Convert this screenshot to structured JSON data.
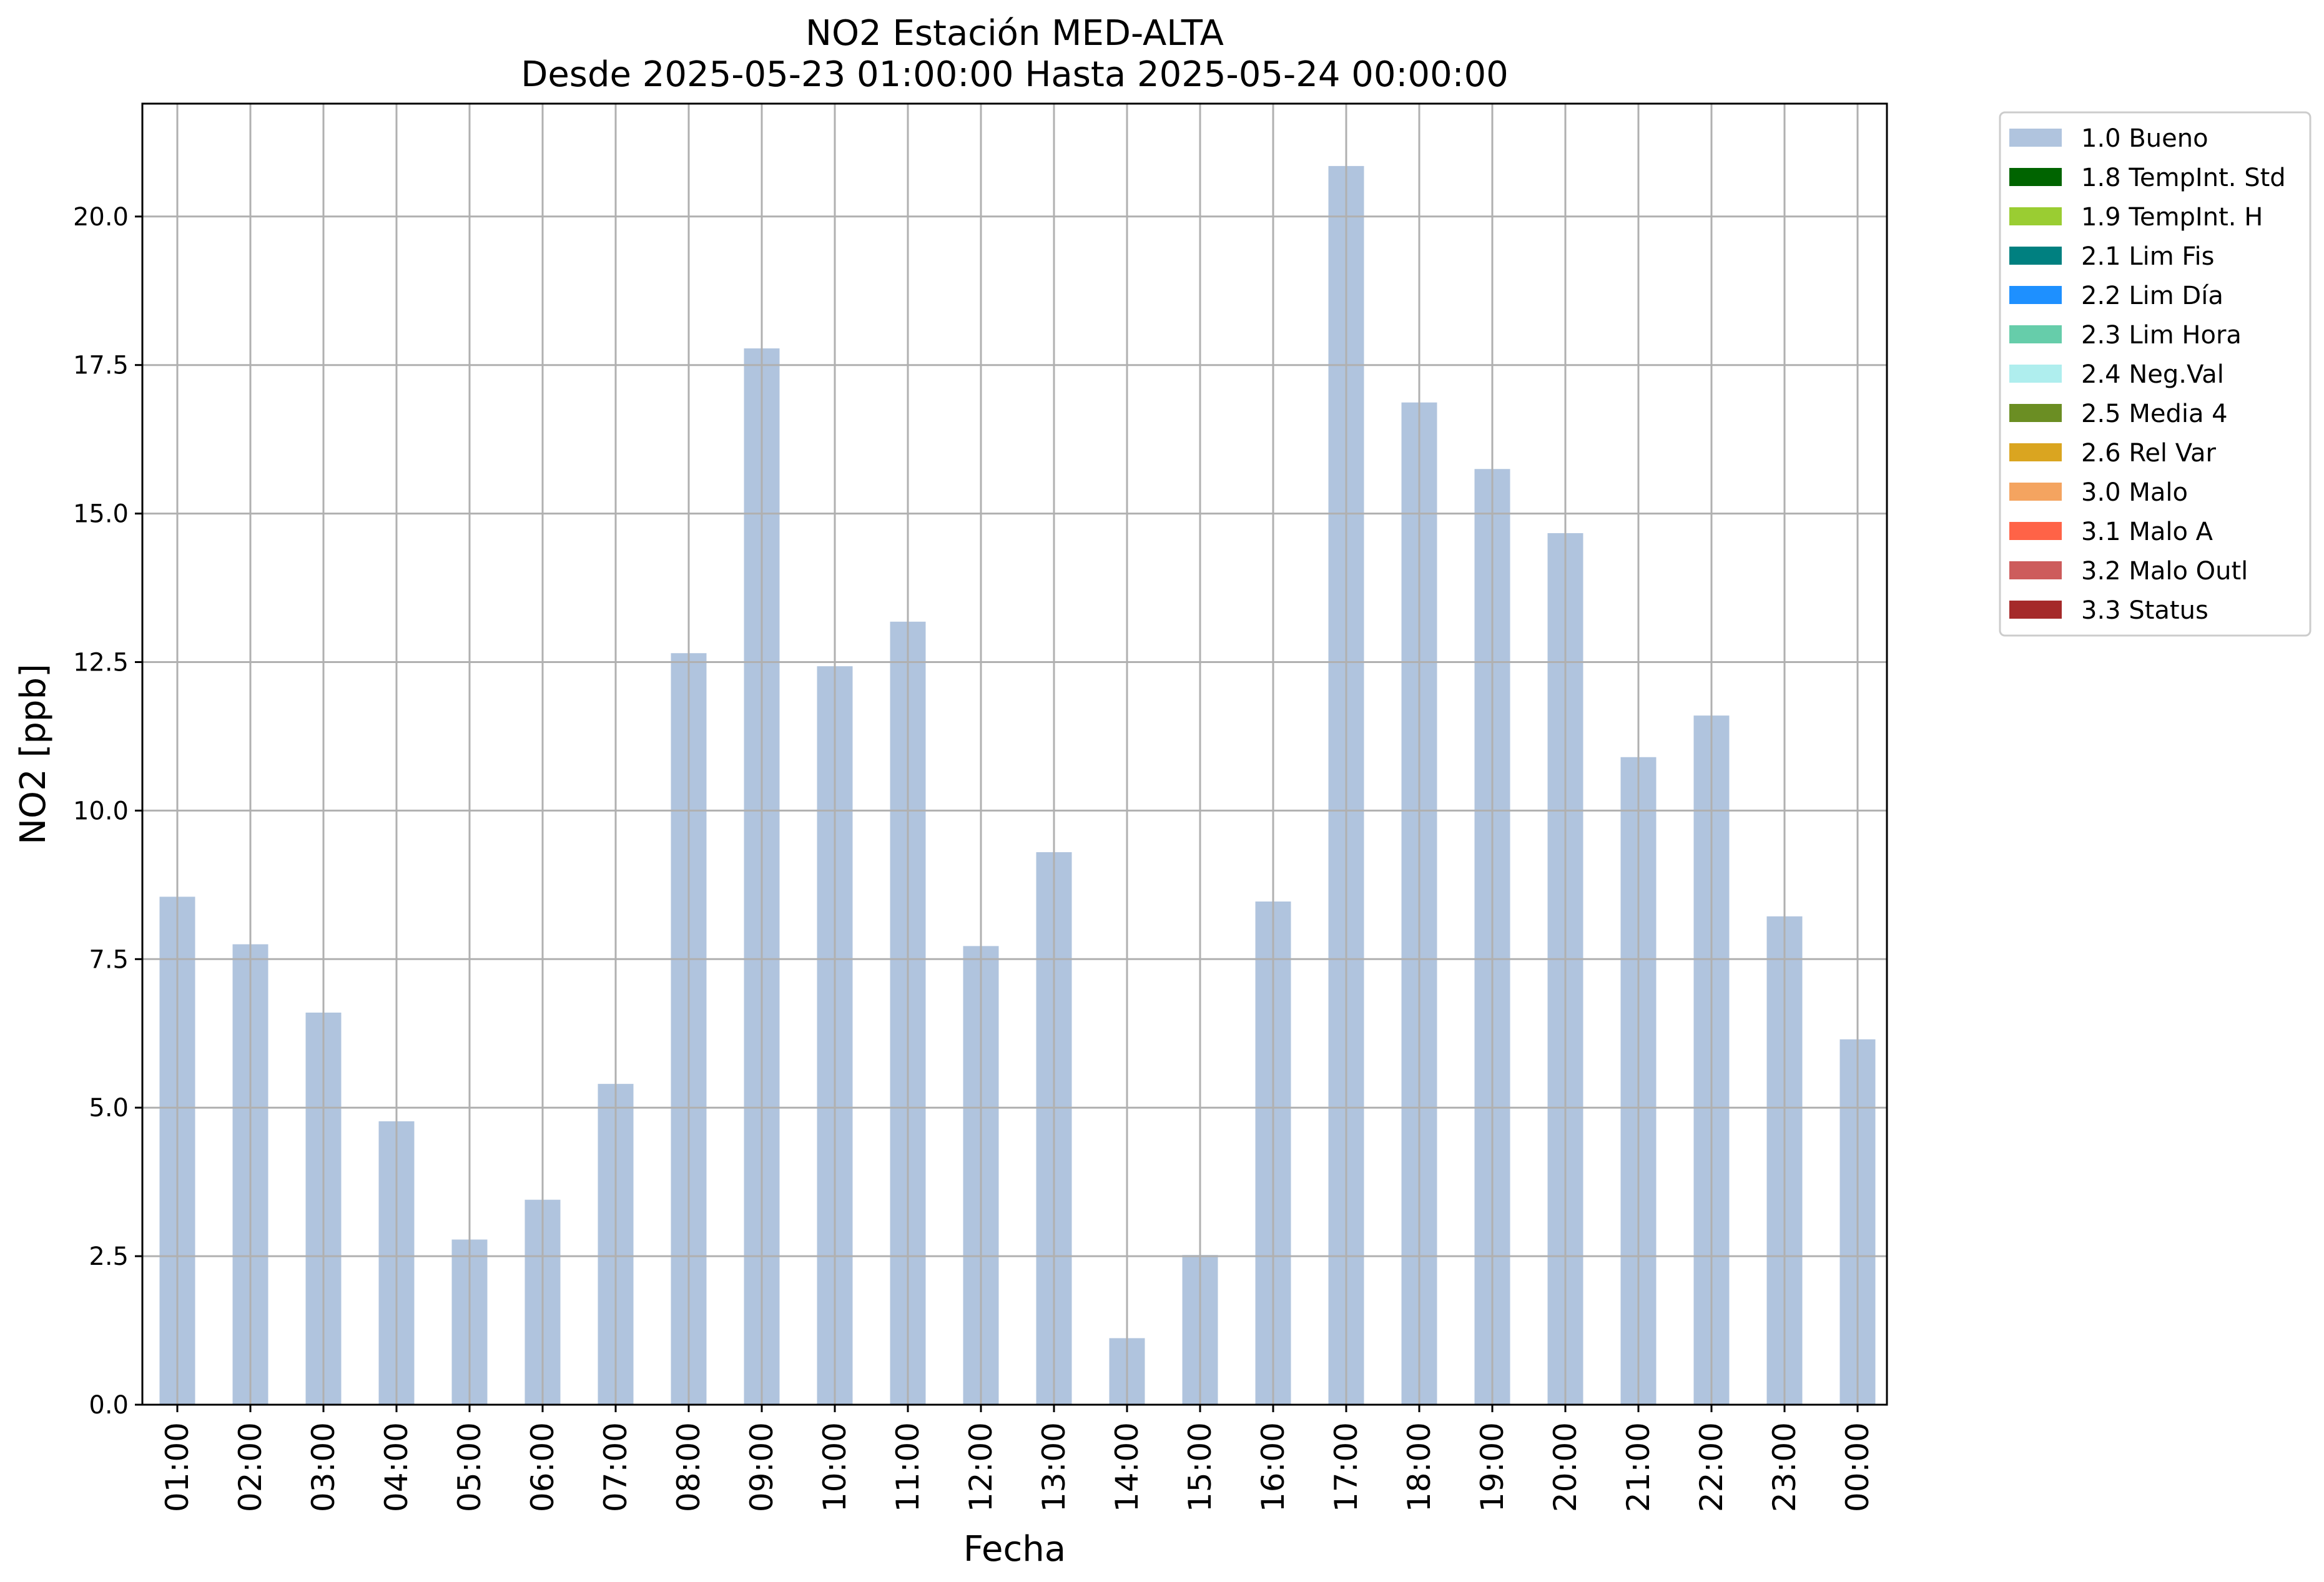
{
  "chart_data": {
    "type": "bar",
    "title": "NO2 Estación MED-ALTA",
    "subtitle": "Desde 2025-05-23 01:00:00 Hasta 2025-05-24 00:00:00",
    "xlabel": "Fecha",
    "ylabel": "NO2 [ppb]",
    "ylim": [
      0,
      21.9
    ],
    "yticks": [
      "0.0",
      "2.5",
      "5.0",
      "7.5",
      "10.0",
      "12.5",
      "15.0",
      "17.5",
      "20.0"
    ],
    "grid": true,
    "legend_position": "outside top-right",
    "categories": [
      "01:00",
      "02:00",
      "03:00",
      "04:00",
      "05:00",
      "06:00",
      "07:00",
      "08:00",
      "09:00",
      "10:00",
      "11:00",
      "12:00",
      "13:00",
      "14:00",
      "15:00",
      "16:00",
      "17:00",
      "18:00",
      "19:00",
      "20:00",
      "21:00",
      "22:00",
      "23:00",
      "00:00"
    ],
    "series": [
      {
        "name": "1.0 Bueno",
        "color": "#b0c4de",
        "values": [
          8.55,
          7.75,
          6.6,
          4.77,
          2.78,
          3.45,
          5.4,
          12.65,
          17.78,
          12.43,
          13.18,
          7.72,
          9.3,
          1.12,
          2.52,
          8.47,
          20.85,
          16.87,
          15.75,
          14.67,
          10.9,
          11.6,
          8.22,
          6.15
        ]
      }
    ],
    "legend": [
      {
        "label": "1.0 Bueno",
        "color": "#b0c4de"
      },
      {
        "label": "1.8 TempInt. Std",
        "color": "#006400"
      },
      {
        "label": "1.9 TempInt. H",
        "color": "#9acd32"
      },
      {
        "label": "2.1 Lim Fis",
        "color": "#008080"
      },
      {
        "label": "2.2 Lim Día",
        "color": "#1e90ff"
      },
      {
        "label": "2.3 Lim Hora",
        "color": "#66cdaa"
      },
      {
        "label": "2.4 Neg.Val",
        "color": "#afeeee"
      },
      {
        "label": "2.5 Media 4",
        "color": "#6b8e23"
      },
      {
        "label": "2.6 Rel Var",
        "color": "#daa520"
      },
      {
        "label": "3.0 Malo",
        "color": "#f4a460"
      },
      {
        "label": "3.1 Malo A",
        "color": "#ff6347"
      },
      {
        "label": "3.2 Malo Outl",
        "color": "#cd5c5c"
      },
      {
        "label": "3.3 Status",
        "color": "#a52a2a"
      }
    ]
  }
}
